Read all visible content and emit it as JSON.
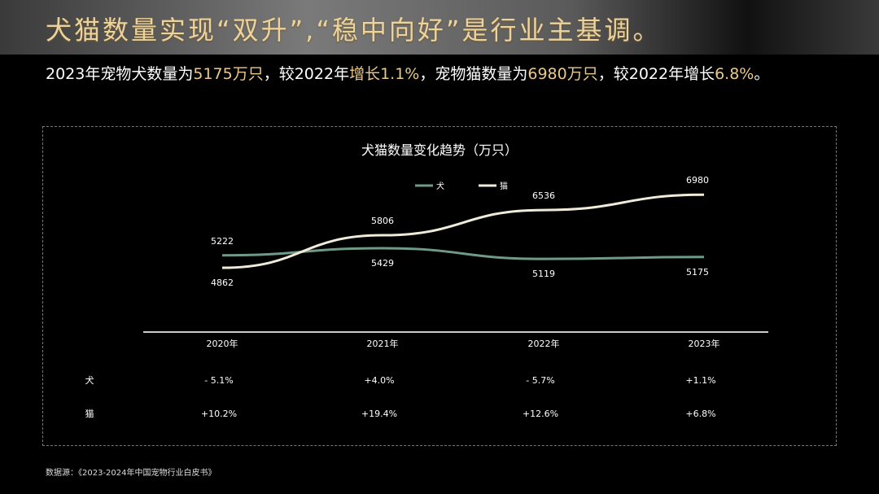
{
  "header": {
    "title": "犬猫数量实现“双升”,“稳中向好”是行业主基调。"
  },
  "subtitle": [
    {
      "text": "2023年宠物犬数量为",
      "hl": false
    },
    {
      "text": "5175万只",
      "hl": true
    },
    {
      "text": "，较2022年",
      "hl": false
    },
    {
      "text": "增长1.1%",
      "hl": true
    },
    {
      "text": "，宠物猫数量为",
      "hl": false
    },
    {
      "text": "6980万只",
      "hl": true
    },
    {
      "text": "，较2022年增长",
      "hl": false
    },
    {
      "text": "6.8%",
      "hl": true
    },
    {
      "text": "。",
      "hl": false
    }
  ],
  "colors": {
    "highlight": "#e8c98a",
    "dog": "#6f9a88",
    "cat": "#f0ead8"
  },
  "chart_data": {
    "type": "line",
    "title": "犬猫数量变化趋势（万只）",
    "categories": [
      "2020年",
      "2021年",
      "2022年",
      "2023年"
    ],
    "series": [
      {
        "name": "犬",
        "values": [
          5222,
          5429,
          5119,
          5175
        ],
        "color": "#6f9a88"
      },
      {
        "name": "猫",
        "values": [
          4862,
          5806,
          6536,
          6980
        ],
        "color": "#f0ead8"
      }
    ],
    "ylim": [
      3000,
      8000
    ],
    "grid": false,
    "legend": "top-center",
    "table": {
      "rows": [
        {
          "label": "犬",
          "values": [
            "- 5.1%",
            "+4.0%",
            "- 5.7%",
            "+1.1%"
          ]
        },
        {
          "label": "猫",
          "values": [
            "+10.2%",
            "+19.4%",
            "+12.6%",
            "+6.8%"
          ]
        }
      ]
    }
  },
  "footer": {
    "source": "数据源：《2023-2024年中国宠物行业白皮书》"
  }
}
